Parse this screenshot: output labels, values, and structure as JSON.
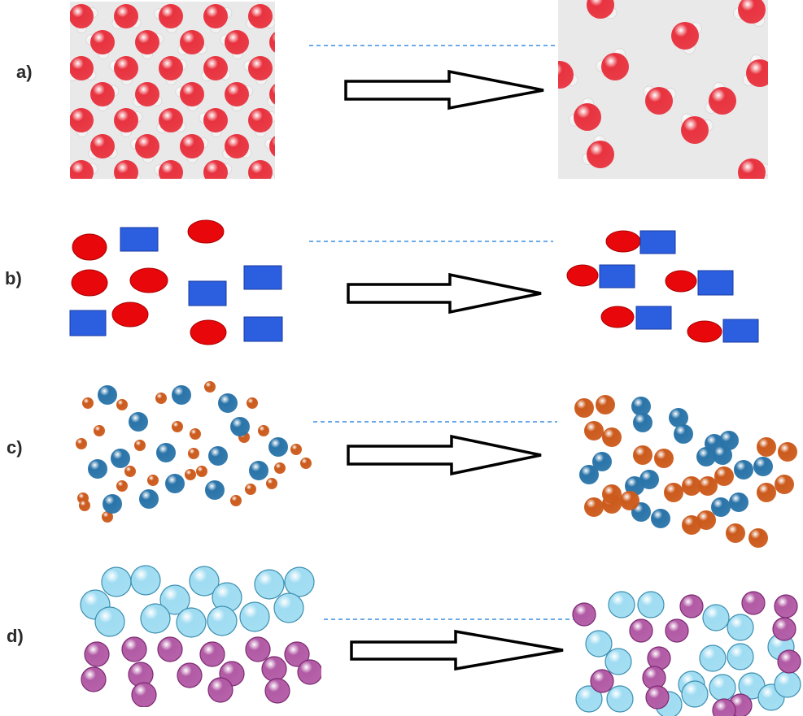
{
  "rows": [
    {
      "label": "a)"
    },
    {
      "label": "b)"
    },
    {
      "label": "c)"
    },
    {
      "label": "d)"
    }
  ],
  "colors": {
    "water_oxygen": "#e8333f",
    "water_hydrogen": "#f2f2f2",
    "panel_bg": "#e9e9e9",
    "red_circle": "#e8070b",
    "blue_square": "#2b5fe0",
    "blue_sphere": "#2a74a9",
    "orange_sphere": "#cc5a1c",
    "cyan_sphere": "#9fdcf2",
    "magenta_sphere": "#b25aa5",
    "dashed_line": "#3b8ee0",
    "arrow_stroke": "#000000"
  },
  "icons": {
    "arrow": "right-arrow-icon"
  }
}
